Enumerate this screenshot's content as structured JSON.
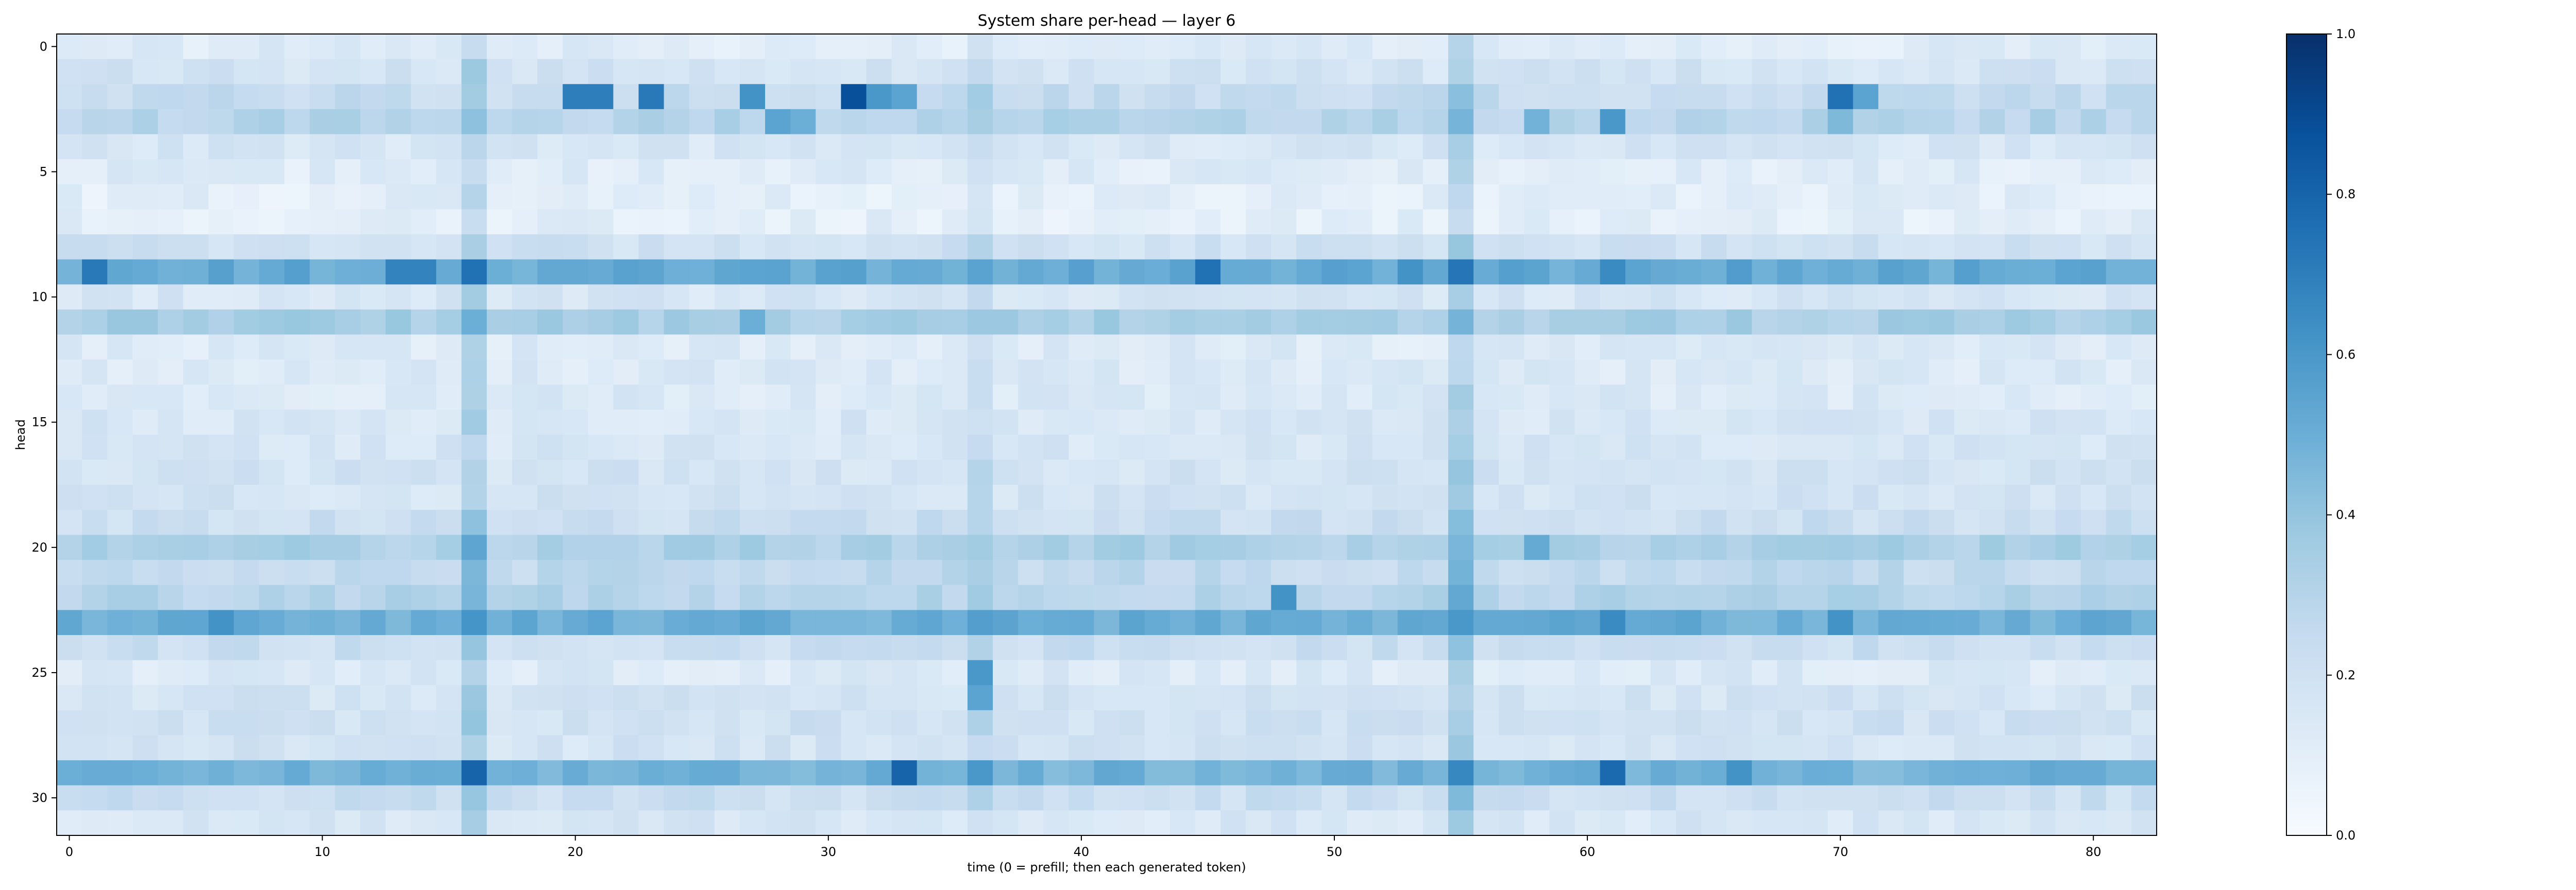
{
  "chart_data": {
    "type": "heatmap",
    "title": "System share per-head — layer 6",
    "xlabel": "time (0 = prefill; then each generated token)",
    "ylabel": "head",
    "colormap": "Blues",
    "n_cols": 83,
    "n_rows": 32,
    "xlim": [
      -0.5,
      82.5
    ],
    "ylim": [
      31.5,
      -0.5
    ],
    "xticks": [
      0,
      10,
      20,
      30,
      40,
      50,
      60,
      70,
      80
    ],
    "xtick_labels": [
      "0",
      "10",
      "20",
      "30",
      "40",
      "50",
      "60",
      "70",
      "80"
    ],
    "yticks": [
      0,
      5,
      10,
      15,
      20,
      25,
      30
    ],
    "ytick_labels": [
      "0",
      "5",
      "10",
      "15",
      "20",
      "25",
      "30"
    ],
    "colorbar": {
      "vmin": 0.0,
      "vmax": 1.0,
      "ticks": [
        0.0,
        0.2,
        0.4,
        0.6,
        0.8,
        1.0
      ],
      "tick_labels": [
        "0.0",
        "0.2",
        "0.4",
        "0.6",
        "0.8",
        "1.0"
      ]
    },
    "row_base_values": [
      0.12,
      0.18,
      0.24,
      0.3,
      0.16,
      0.12,
      0.1,
      0.1,
      0.2,
      0.52,
      0.16,
      0.34,
      0.13,
      0.14,
      0.14,
      0.16,
      0.16,
      0.18,
      0.18,
      0.22,
      0.33,
      0.26,
      0.3,
      0.5,
      0.22,
      0.14,
      0.18,
      0.2,
      0.18,
      0.48,
      0.22,
      0.16
    ],
    "column_offsets": {
      "16": 0.16,
      "36": 0.08,
      "55": 0.18
    },
    "highlight_cells": [
      {
        "row": 2,
        "col": 20,
        "value": 0.7
      },
      {
        "row": 2,
        "col": 21,
        "value": 0.7
      },
      {
        "row": 2,
        "col": 23,
        "value": 0.72
      },
      {
        "row": 2,
        "col": 27,
        "value": 0.62
      },
      {
        "row": 2,
        "col": 31,
        "value": 0.88
      },
      {
        "row": 2,
        "col": 32,
        "value": 0.6
      },
      {
        "row": 2,
        "col": 33,
        "value": 0.55
      },
      {
        "row": 2,
        "col": 70,
        "value": 0.75
      },
      {
        "row": 2,
        "col": 71,
        "value": 0.55
      },
      {
        "row": 3,
        "col": 28,
        "value": 0.55
      },
      {
        "row": 3,
        "col": 29,
        "value": 0.5
      },
      {
        "row": 3,
        "col": 58,
        "value": 0.48
      },
      {
        "row": 3,
        "col": 61,
        "value": 0.6
      },
      {
        "row": 3,
        "col": 70,
        "value": 0.45
      },
      {
        "row": 9,
        "col": 1,
        "value": 0.72
      },
      {
        "row": 9,
        "col": 13,
        "value": 0.68
      },
      {
        "row": 9,
        "col": 14,
        "value": 0.68
      },
      {
        "row": 9,
        "col": 16,
        "value": 0.75
      },
      {
        "row": 9,
        "col": 45,
        "value": 0.75
      },
      {
        "row": 9,
        "col": 53,
        "value": 0.62
      },
      {
        "row": 9,
        "col": 61,
        "value": 0.65
      },
      {
        "row": 9,
        "col": 66,
        "value": 0.58
      },
      {
        "row": 11,
        "col": 27,
        "value": 0.5
      },
      {
        "row": 11,
        "col": 16,
        "value": 0.5
      },
      {
        "row": 20,
        "col": 58,
        "value": 0.52
      },
      {
        "row": 22,
        "col": 48,
        "value": 0.62
      },
      {
        "row": 23,
        "col": 6,
        "value": 0.62
      },
      {
        "row": 23,
        "col": 55,
        "value": 0.6
      },
      {
        "row": 23,
        "col": 61,
        "value": 0.65
      },
      {
        "row": 23,
        "col": 70,
        "value": 0.62
      },
      {
        "row": 25,
        "col": 36,
        "value": 0.6
      },
      {
        "row": 26,
        "col": 36,
        "value": 0.55
      },
      {
        "row": 29,
        "col": 16,
        "value": 0.8
      },
      {
        "row": 29,
        "col": 33,
        "value": 0.8
      },
      {
        "row": 29,
        "col": 61,
        "value": 0.78
      },
      {
        "row": 29,
        "col": 66,
        "value": 0.62
      },
      {
        "row": 29,
        "col": 70,
        "value": 0.5
      }
    ]
  }
}
